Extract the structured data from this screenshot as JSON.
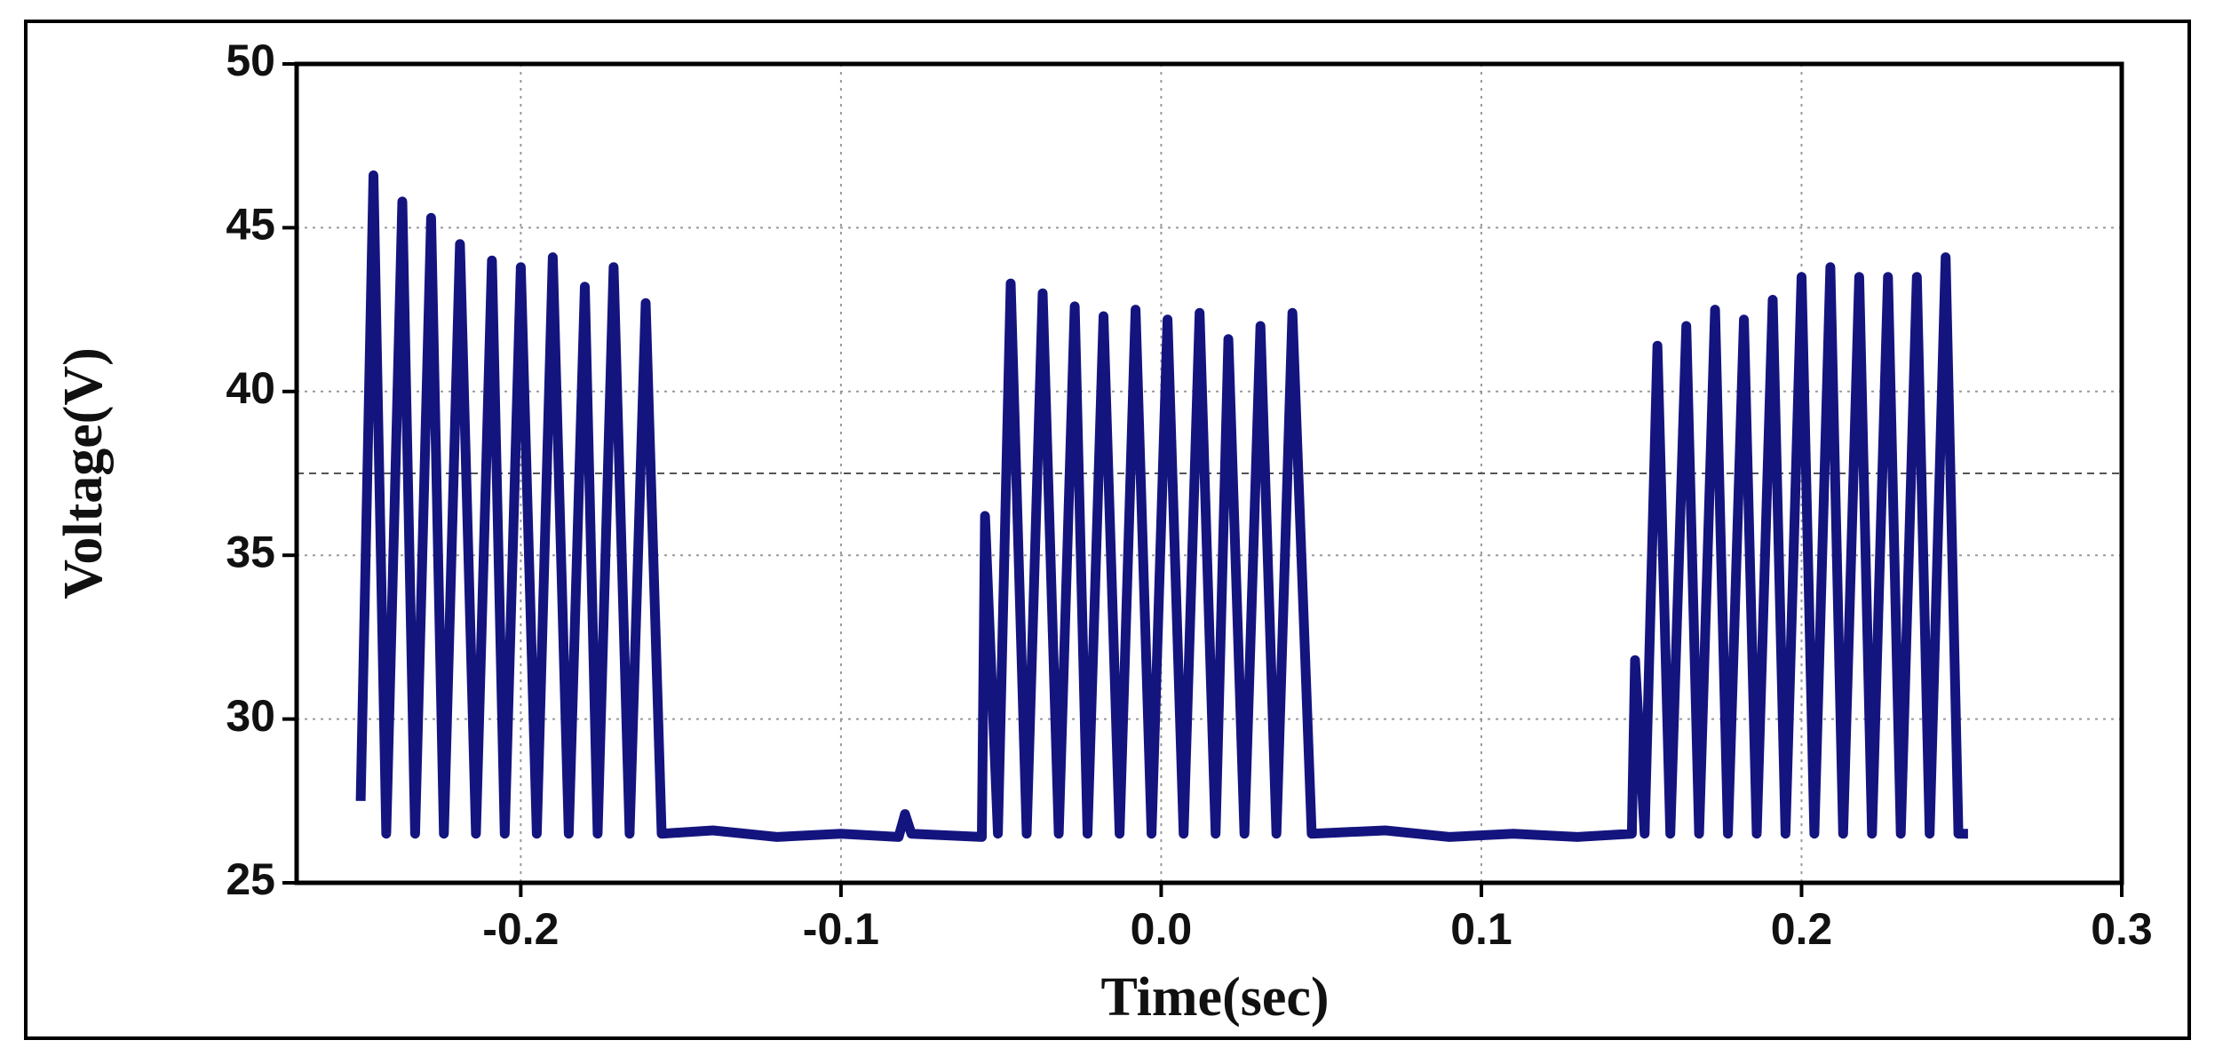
{
  "chart_data": {
    "type": "line",
    "x_label": "Time(sec)",
    "y_label": "Voltage(V)",
    "xlim": [
      -0.27,
      0.3
    ],
    "xticks": [
      -0.2,
      -0.1,
      {
        "value": 0,
        "label": "0.0"
      },
      0.1,
      0.2,
      0.3
    ],
    "ylim": [
      25,
      50
    ],
    "yticks": [
      25,
      30,
      35,
      40,
      45,
      50
    ],
    "grid": true,
    "reference_line": 37.5,
    "x": [
      -0.25,
      -0.246,
      -0.242,
      -0.237,
      -0.233,
      -0.228,
      -0.224,
      -0.219,
      -0.214,
      -0.209,
      -0.205,
      -0.2,
      -0.195,
      -0.19,
      -0.185,
      -0.18,
      -0.176,
      -0.171,
      -0.166,
      -0.161,
      -0.156,
      -0.14,
      -0.12,
      -0.1,
      -0.082,
      -0.08,
      -0.078,
      -0.056,
      -0.055,
      -0.051,
      -0.047,
      -0.042,
      -0.037,
      -0.032,
      -0.027,
      -0.023,
      -0.018,
      -0.013,
      -0.008,
      -0.003,
      0.002,
      0.007,
      0.012,
      0.017,
      0.021,
      0.026,
      0.031,
      0.036,
      0.041,
      0.047,
      0.07,
      0.09,
      0.11,
      0.13,
      0.147,
      0.148,
      0.151,
      0.155,
      0.159,
      0.164,
      0.168,
      0.173,
      0.177,
      0.182,
      0.186,
      0.191,
      0.195,
      0.2,
      0.204,
      0.209,
      0.213,
      0.218,
      0.222,
      0.227,
      0.231,
      0.236,
      0.24,
      0.245,
      0.249,
      0.252
    ],
    "series": [
      {
        "color": "#14147f",
        "values": [
          27.5,
          46.6,
          26.5,
          45.8,
          26.5,
          45.3,
          26.5,
          44.5,
          26.5,
          44.0,
          26.5,
          43.8,
          26.5,
          44.1,
          26.5,
          43.2,
          26.5,
          43.8,
          26.5,
          42.7,
          26.5,
          26.6,
          26.4,
          26.5,
          26.4,
          27.1,
          26.5,
          26.4,
          36.2,
          26.5,
          43.3,
          26.5,
          43.0,
          26.5,
          42.6,
          26.5,
          42.3,
          26.5,
          42.5,
          26.5,
          42.2,
          26.5,
          42.4,
          26.5,
          41.6,
          26.5,
          42.0,
          26.5,
          42.4,
          26.5,
          26.6,
          26.4,
          26.5,
          26.4,
          26.5,
          31.8,
          26.5,
          41.4,
          26.5,
          42.0,
          26.5,
          42.5,
          26.5,
          42.2,
          26.5,
          42.8,
          26.5,
          43.5,
          26.5,
          43.8,
          26.5,
          43.5,
          26.5,
          43.5,
          26.5,
          43.5,
          26.5,
          44.1,
          26.5,
          26.5
        ]
      }
    ]
  }
}
